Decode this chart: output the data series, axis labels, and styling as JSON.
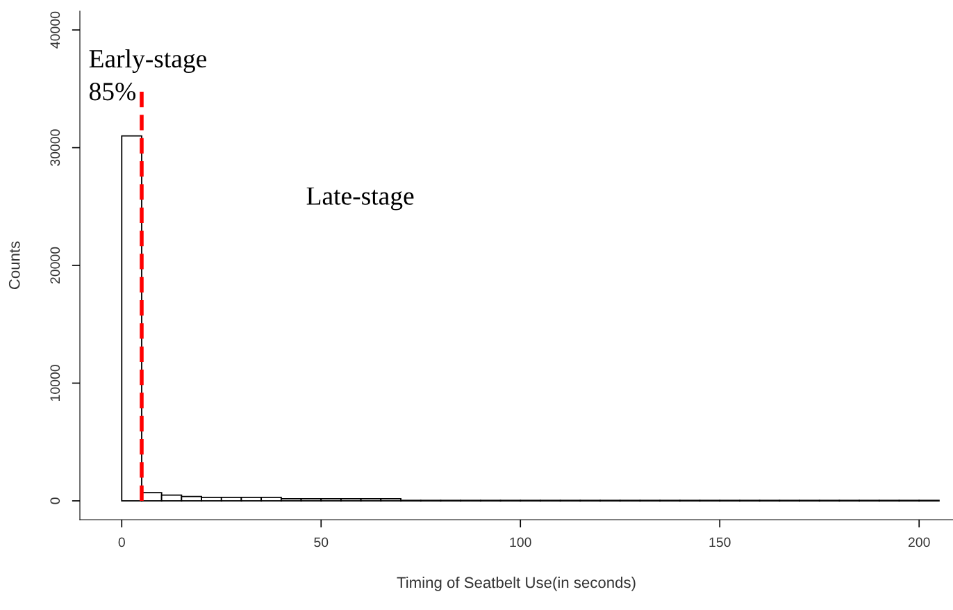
{
  "chart_data": {
    "type": "histogram",
    "xlabel": "Timing of Seatbelt Use(in seconds)",
    "ylabel": "Counts",
    "bins": [
      0,
      5,
      10,
      15,
      20,
      25,
      30,
      35,
      40,
      45,
      50,
      55,
      60,
      65,
      70,
      75,
      80,
      85,
      90,
      95,
      100,
      105,
      110,
      115,
      120,
      125,
      130,
      135,
      140,
      145,
      150,
      155,
      160,
      165,
      170,
      175,
      180,
      185,
      190,
      195,
      200,
      205
    ],
    "values": [
      31000,
      700,
      490,
      370,
      300,
      300,
      300,
      300,
      180,
      180,
      180,
      180,
      180,
      180,
      40,
      40,
      40,
      40,
      40,
      40,
      40,
      40,
      40,
      40,
      40,
      40,
      40,
      40,
      40,
      40,
      40,
      40,
      40,
      40,
      40,
      40,
      40,
      40,
      40,
      40,
      40
    ],
    "color": "#ffffff",
    "xlim": [
      -10.5,
      208.5
    ],
    "ylim": [
      -1600,
      41600
    ],
    "xticks": [
      0,
      50,
      100,
      150,
      200
    ],
    "yticks": [
      0,
      10000,
      20000,
      30000,
      40000
    ],
    "ref_lines": [
      {
        "axis": "x",
        "value": 5,
        "color": "#ff0000",
        "line_style": "dashed"
      }
    ],
    "annotations": [
      "Early-stage\n85%",
      "Late-stage"
    ],
    "grid": false
  }
}
